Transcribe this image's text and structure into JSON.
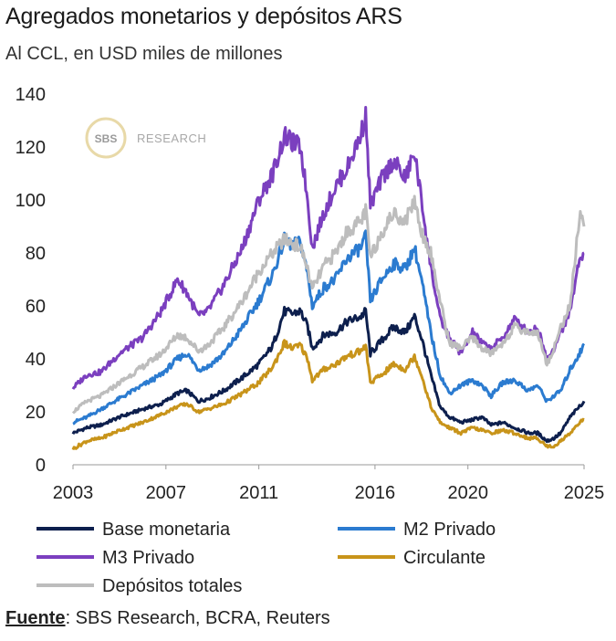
{
  "title": "Agregados monetarios y depósitos ARS",
  "subtitle": "Al CCL, en USD miles de millones",
  "source_label": "Fuente",
  "source_text": ": SBS Research, BCRA, Reuters",
  "watermark": {
    "badge": "SBS",
    "text": "RESEARCH"
  },
  "chart_data": {
    "type": "line",
    "title": "Agregados monetarios y depósitos ARS",
    "ylim": [
      0,
      140
    ],
    "y_ticks": [
      0,
      20,
      40,
      60,
      80,
      100,
      120,
      140
    ],
    "xlim": [
      2003,
      2025
    ],
    "x_ticks": [
      2003,
      2007,
      2011,
      2016,
      2020,
      2025
    ],
    "grid": false,
    "legend_position": "bottom",
    "series": [
      {
        "name": "Base monetaria",
        "color": "#0d1f4d",
        "points": [
          [
            2003.0,
            12
          ],
          [
            2003.6,
            14
          ],
          [
            2004.2,
            15
          ],
          [
            2005.0,
            18
          ],
          [
            2006.0,
            21
          ],
          [
            2006.8,
            23
          ],
          [
            2007.5,
            27
          ],
          [
            2007.9,
            28
          ],
          [
            2008.4,
            24
          ],
          [
            2008.8,
            25
          ],
          [
            2009.5,
            28
          ],
          [
            2010.3,
            33
          ],
          [
            2011.0,
            38
          ],
          [
            2011.6,
            45
          ],
          [
            2012.1,
            58
          ],
          [
            2012.4,
            57
          ],
          [
            2012.8,
            58
          ],
          [
            2013.1,
            52
          ],
          [
            2013.3,
            44
          ],
          [
            2013.8,
            49
          ],
          [
            2014.3,
            50
          ],
          [
            2014.8,
            54
          ],
          [
            2015.4,
            56
          ],
          [
            2015.6,
            58
          ],
          [
            2015.8,
            42
          ],
          [
            2016.3,
            47
          ],
          [
            2016.8,
            52
          ],
          [
            2017.3,
            50
          ],
          [
            2017.7,
            56
          ],
          [
            2018.0,
            48
          ],
          [
            2018.4,
            34
          ],
          [
            2018.8,
            22
          ],
          [
            2019.2,
            18
          ],
          [
            2019.7,
            16
          ],
          [
            2020.2,
            17
          ],
          [
            2020.6,
            18
          ],
          [
            2021.0,
            15
          ],
          [
            2021.5,
            16
          ],
          [
            2022.0,
            14
          ],
          [
            2022.6,
            12
          ],
          [
            2023.0,
            12
          ],
          [
            2023.4,
            9
          ],
          [
            2023.7,
            10
          ],
          [
            2024.0,
            12
          ],
          [
            2024.4,
            18
          ],
          [
            2024.8,
            22
          ],
          [
            2025.0,
            24
          ]
        ]
      },
      {
        "name": "M2 Privado",
        "color": "#2b7bd0",
        "points": [
          [
            2003.0,
            16
          ],
          [
            2003.6,
            18
          ],
          [
            2004.2,
            21
          ],
          [
            2005.0,
            25
          ],
          [
            2006.0,
            30
          ],
          [
            2006.8,
            34
          ],
          [
            2007.5,
            40
          ],
          [
            2007.9,
            42
          ],
          [
            2008.4,
            36
          ],
          [
            2008.8,
            37
          ],
          [
            2009.5,
            42
          ],
          [
            2010.3,
            52
          ],
          [
            2011.0,
            62
          ],
          [
            2011.6,
            72
          ],
          [
            2012.1,
            85
          ],
          [
            2012.4,
            83
          ],
          [
            2012.8,
            84
          ],
          [
            2013.1,
            72
          ],
          [
            2013.3,
            60
          ],
          [
            2013.8,
            67
          ],
          [
            2014.3,
            70
          ],
          [
            2014.8,
            78
          ],
          [
            2015.4,
            82
          ],
          [
            2015.6,
            86
          ],
          [
            2015.8,
            62
          ],
          [
            2016.3,
            70
          ],
          [
            2016.8,
            76
          ],
          [
            2017.3,
            74
          ],
          [
            2017.7,
            82
          ],
          [
            2018.0,
            70
          ],
          [
            2018.4,
            50
          ],
          [
            2018.8,
            34
          ],
          [
            2019.2,
            27
          ],
          [
            2019.7,
            30
          ],
          [
            2020.2,
            32
          ],
          [
            2020.6,
            30
          ],
          [
            2021.0,
            26
          ],
          [
            2021.5,
            31
          ],
          [
            2022.0,
            32
          ],
          [
            2022.6,
            28
          ],
          [
            2023.0,
            30
          ],
          [
            2023.4,
            24
          ],
          [
            2023.7,
            26
          ],
          [
            2024.0,
            28
          ],
          [
            2024.4,
            36
          ],
          [
            2024.8,
            42
          ],
          [
            2025.0,
            45
          ]
        ]
      },
      {
        "name": "M3 Privado",
        "color": "#7b3fbf",
        "points": [
          [
            2003.0,
            29
          ],
          [
            2003.6,
            34
          ],
          [
            2004.2,
            35
          ],
          [
            2005.0,
            42
          ],
          [
            2006.0,
            48
          ],
          [
            2006.8,
            58
          ],
          [
            2007.5,
            70
          ],
          [
            2007.9,
            65
          ],
          [
            2008.4,
            56
          ],
          [
            2008.8,
            58
          ],
          [
            2009.5,
            68
          ],
          [
            2010.3,
            82
          ],
          [
            2011.0,
            100
          ],
          [
            2011.6,
            110
          ],
          [
            2012.1,
            124
          ],
          [
            2012.4,
            122
          ],
          [
            2012.8,
            120
          ],
          [
            2013.1,
            100
          ],
          [
            2013.3,
            82
          ],
          [
            2013.8,
            95
          ],
          [
            2014.3,
            105
          ],
          [
            2014.8,
            112
          ],
          [
            2015.4,
            125
          ],
          [
            2015.6,
            132
          ],
          [
            2015.8,
            98
          ],
          [
            2016.3,
            108
          ],
          [
            2016.8,
            115
          ],
          [
            2017.3,
            108
          ],
          [
            2017.7,
            118
          ],
          [
            2018.0,
            100
          ],
          [
            2018.4,
            75
          ],
          [
            2018.8,
            55
          ],
          [
            2019.2,
            48
          ],
          [
            2019.7,
            42
          ],
          [
            2020.2,
            50
          ],
          [
            2020.6,
            46
          ],
          [
            2021.0,
            44
          ],
          [
            2021.5,
            48
          ],
          [
            2022.0,
            55
          ],
          [
            2022.6,
            50
          ],
          [
            2023.0,
            52
          ],
          [
            2023.4,
            40
          ],
          [
            2023.7,
            44
          ],
          [
            2024.0,
            50
          ],
          [
            2024.4,
            58
          ],
          [
            2024.8,
            78
          ],
          [
            2025.0,
            80
          ]
        ]
      },
      {
        "name": "Circulante",
        "color": "#c8941a",
        "points": [
          [
            2003.0,
            6
          ],
          [
            2003.6,
            9
          ],
          [
            2004.2,
            10
          ],
          [
            2005.0,
            13
          ],
          [
            2006.0,
            16
          ],
          [
            2006.8,
            19
          ],
          [
            2007.5,
            22
          ],
          [
            2007.9,
            23
          ],
          [
            2008.4,
            20
          ],
          [
            2008.8,
            21
          ],
          [
            2009.5,
            23
          ],
          [
            2010.3,
            27
          ],
          [
            2011.0,
            31
          ],
          [
            2011.6,
            37
          ],
          [
            2012.1,
            46
          ],
          [
            2012.4,
            44
          ],
          [
            2012.8,
            45
          ],
          [
            2013.1,
            40
          ],
          [
            2013.3,
            32
          ],
          [
            2013.8,
            36
          ],
          [
            2014.3,
            38
          ],
          [
            2014.8,
            41
          ],
          [
            2015.4,
            43
          ],
          [
            2015.6,
            45
          ],
          [
            2015.8,
            31
          ],
          [
            2016.3,
            34
          ],
          [
            2016.8,
            38
          ],
          [
            2017.3,
            36
          ],
          [
            2017.7,
            41
          ],
          [
            2018.0,
            34
          ],
          [
            2018.4,
            22
          ],
          [
            2018.8,
            16
          ],
          [
            2019.2,
            14
          ],
          [
            2019.7,
            12
          ],
          [
            2020.2,
            14
          ],
          [
            2020.6,
            13
          ],
          [
            2021.0,
            12
          ],
          [
            2021.5,
            13
          ],
          [
            2022.0,
            12
          ],
          [
            2022.6,
            10
          ],
          [
            2023.0,
            10
          ],
          [
            2023.4,
            7
          ],
          [
            2023.7,
            7
          ],
          [
            2024.0,
            9
          ],
          [
            2024.4,
            12
          ],
          [
            2024.8,
            16
          ],
          [
            2025.0,
            17
          ]
        ]
      },
      {
        "name": "Depósitos totales",
        "color": "#bdbdbd",
        "points": [
          [
            2003.0,
            20
          ],
          [
            2003.6,
            24
          ],
          [
            2004.2,
            26
          ],
          [
            2005.0,
            31
          ],
          [
            2006.0,
            37
          ],
          [
            2006.8,
            42
          ],
          [
            2007.5,
            49
          ],
          [
            2007.9,
            48
          ],
          [
            2008.4,
            43
          ],
          [
            2008.8,
            45
          ],
          [
            2009.5,
            52
          ],
          [
            2010.3,
            62
          ],
          [
            2011.0,
            73
          ],
          [
            2011.6,
            80
          ],
          [
            2012.1,
            85
          ],
          [
            2012.4,
            84
          ],
          [
            2012.8,
            82
          ],
          [
            2013.1,
            74
          ],
          [
            2013.3,
            66
          ],
          [
            2013.8,
            75
          ],
          [
            2014.3,
            80
          ],
          [
            2014.8,
            88
          ],
          [
            2015.4,
            92
          ],
          [
            2015.6,
            96
          ],
          [
            2015.8,
            78
          ],
          [
            2016.3,
            88
          ],
          [
            2016.8,
            95
          ],
          [
            2017.3,
            92
          ],
          [
            2017.7,
            100
          ],
          [
            2018.0,
            88
          ],
          [
            2018.4,
            80
          ],
          [
            2018.8,
            62
          ],
          [
            2019.2,
            46
          ],
          [
            2019.7,
            44
          ],
          [
            2020.2,
            48
          ],
          [
            2020.6,
            44
          ],
          [
            2021.0,
            42
          ],
          [
            2021.5,
            46
          ],
          [
            2022.0,
            52
          ],
          [
            2022.6,
            50
          ],
          [
            2023.0,
            50
          ],
          [
            2023.4,
            38
          ],
          [
            2023.7,
            44
          ],
          [
            2024.0,
            52
          ],
          [
            2024.4,
            60
          ],
          [
            2024.8,
            94
          ],
          [
            2025.0,
            90
          ]
        ]
      }
    ]
  }
}
